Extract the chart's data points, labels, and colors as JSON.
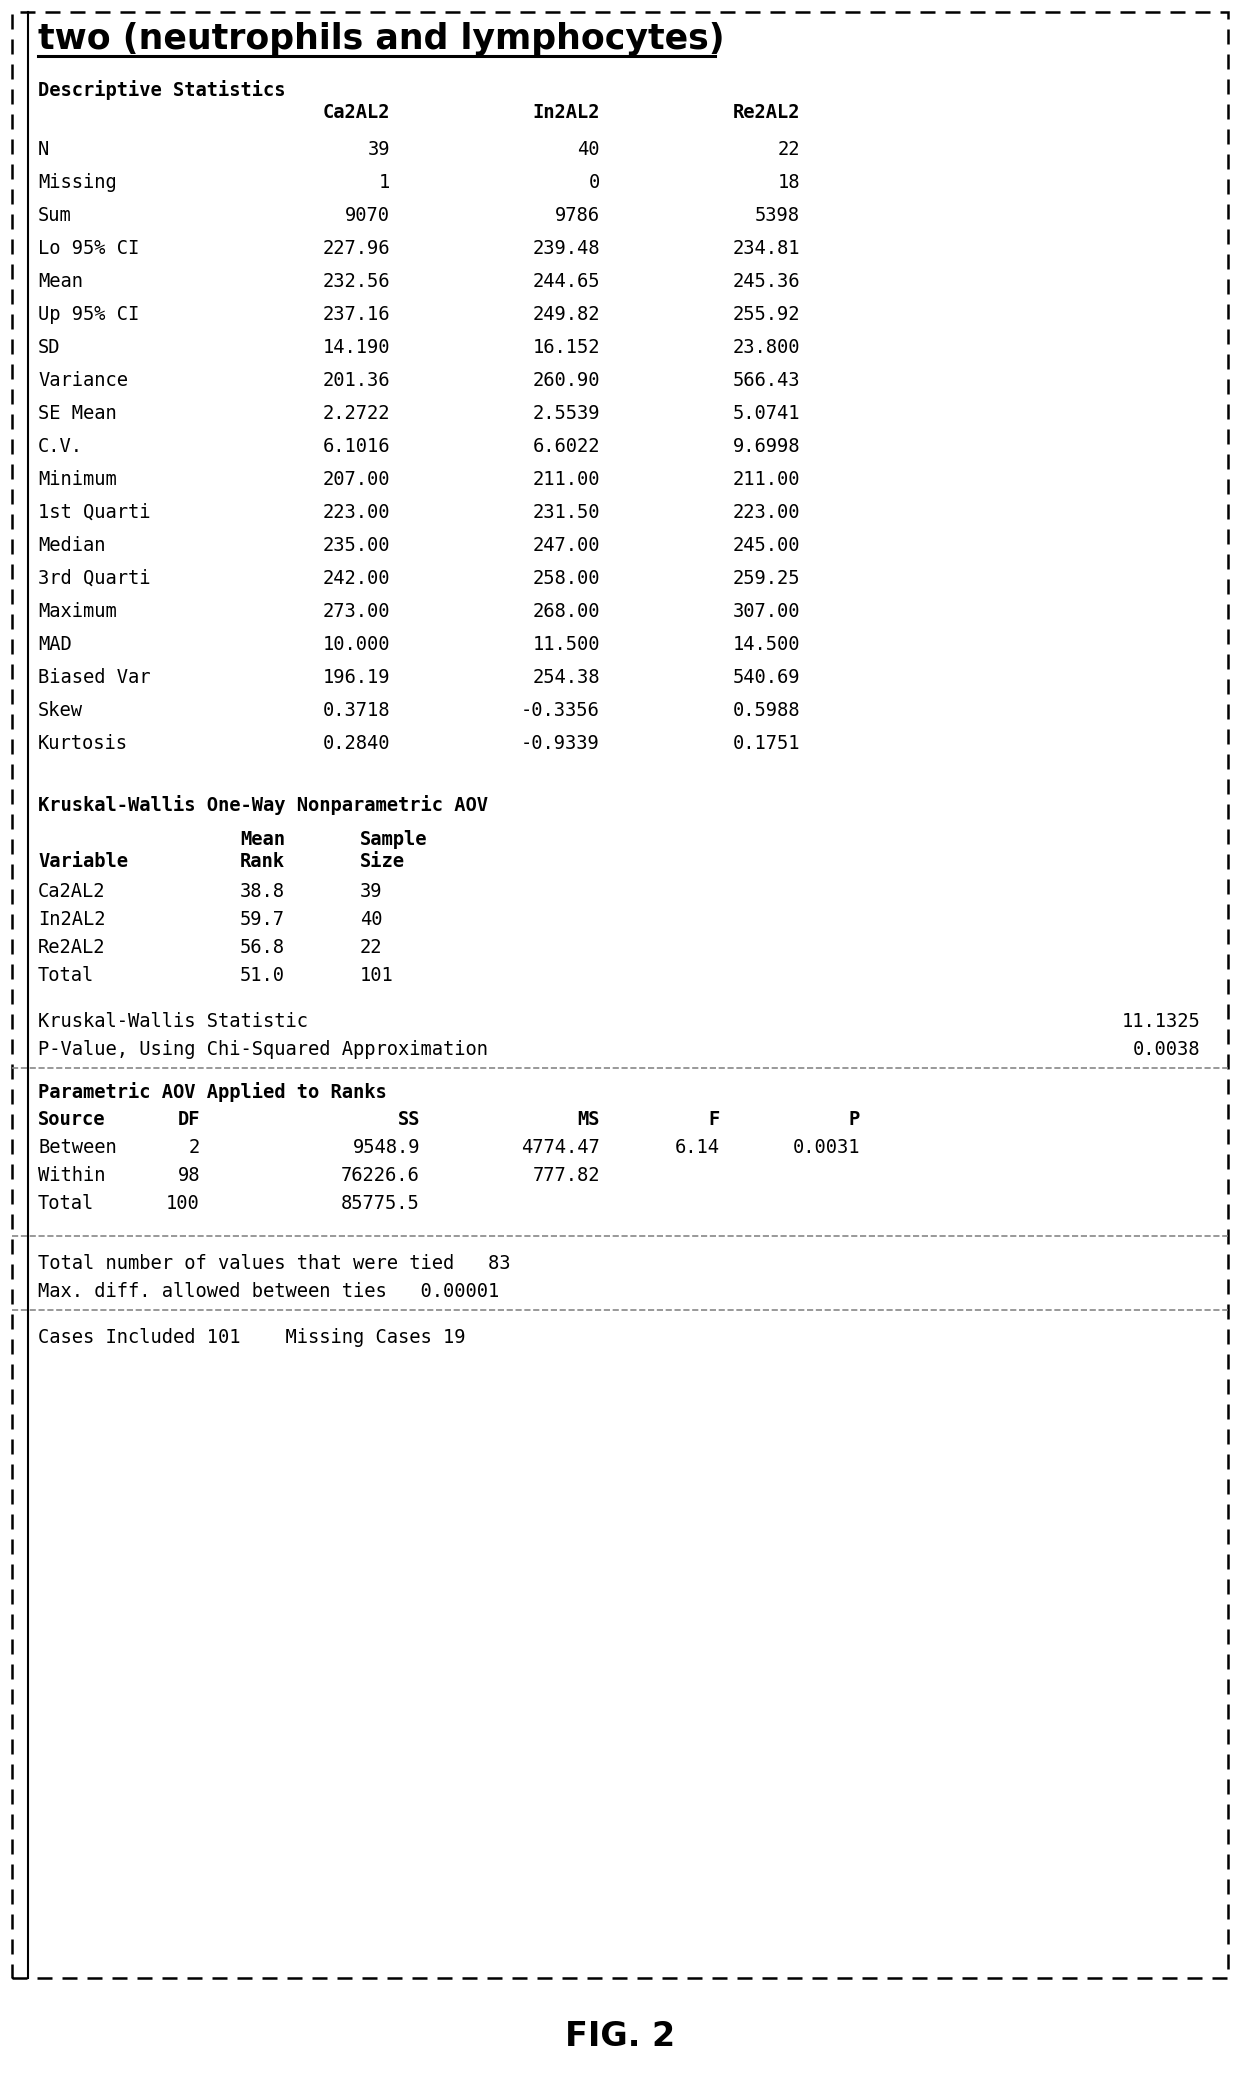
{
  "title": "two (neutrophils and lymphocytes)",
  "background_color": "#ffffff",
  "fig_label": "FIG. 2",
  "descriptive_stats_header": "Descriptive Statistics",
  "desc_col_headers": [
    "Ca2AL2",
    "In2AL2",
    "Re2AL2"
  ],
  "desc_rows": [
    [
      "N",
      "39",
      "40",
      "22"
    ],
    [
      "Missing",
      "1",
      "0",
      "18"
    ],
    [
      "Sum",
      "9070",
      "9786",
      "5398"
    ],
    [
      "Lo 95% CI",
      "227.96",
      "239.48",
      "234.81"
    ],
    [
      "Mean",
      "232.56",
      "244.65",
      "245.36"
    ],
    [
      "Up 95% CI",
      "237.16",
      "249.82",
      "255.92"
    ],
    [
      "SD",
      "14.190",
      "16.152",
      "23.800"
    ],
    [
      "Variance",
      "201.36",
      "260.90",
      "566.43"
    ],
    [
      "SE Mean",
      "2.2722",
      "2.5539",
      "5.0741"
    ],
    [
      "C.V.",
      "6.1016",
      "6.6022",
      "9.6998"
    ],
    [
      "Minimum",
      "207.00",
      "211.00",
      "211.00"
    ],
    [
      "1st Quarti",
      "223.00",
      "231.50",
      "223.00"
    ],
    [
      "Median",
      "235.00",
      "247.00",
      "245.00"
    ],
    [
      "3rd Quarti",
      "242.00",
      "258.00",
      "259.25"
    ],
    [
      "Maximum",
      "273.00",
      "268.00",
      "307.00"
    ],
    [
      "MAD",
      "10.000",
      "11.500",
      "14.500"
    ],
    [
      "Biased Var",
      "196.19",
      "254.38",
      "540.69"
    ],
    [
      "Skew",
      "0.3718",
      "-0.3356",
      "0.5988"
    ],
    [
      "Kurtosis",
      "0.2840",
      "-0.9339",
      "0.1751"
    ]
  ],
  "kw_header": "Kruskal-Wallis One-Way Nonparametric AOV",
  "kw_data_rows": [
    [
      "Ca2AL2",
      "38.8",
      "39"
    ],
    [
      "In2AL2",
      "59.7",
      "40"
    ],
    [
      "Re2AL2",
      "56.8",
      "22"
    ],
    [
      "Total",
      "51.0",
      "101"
    ]
  ],
  "kw_stat_label": "Kruskal-Wallis Statistic",
  "kw_stat_value": "11.1325",
  "kw_pval_label": "P-Value, Using Chi-Squared Approximation",
  "kw_pval_value": "0.0038",
  "param_header": "Parametric AOV Applied to Ranks",
  "param_col_headers": [
    "Source",
    "DF",
    "SS",
    "MS",
    "F",
    "P"
  ],
  "param_rows": [
    [
      "Between",
      "2",
      "9548.9",
      "4774.47",
      "6.14",
      "0.0031"
    ],
    [
      "Within",
      "98",
      "76226.6",
      "777.82",
      "",
      ""
    ],
    [
      "Total",
      "100",
      "85775.5",
      "",
      "",
      ""
    ]
  ],
  "tied_line1": "Total number of values that were tied   83",
  "tied_line2": "Max. diff. allowed between ties   0.00001",
  "cases_line": "Cases Included 101    Missing Cases 19",
  "monospace_size": 13.5,
  "title_size": 25,
  "figlabel_size": 24
}
